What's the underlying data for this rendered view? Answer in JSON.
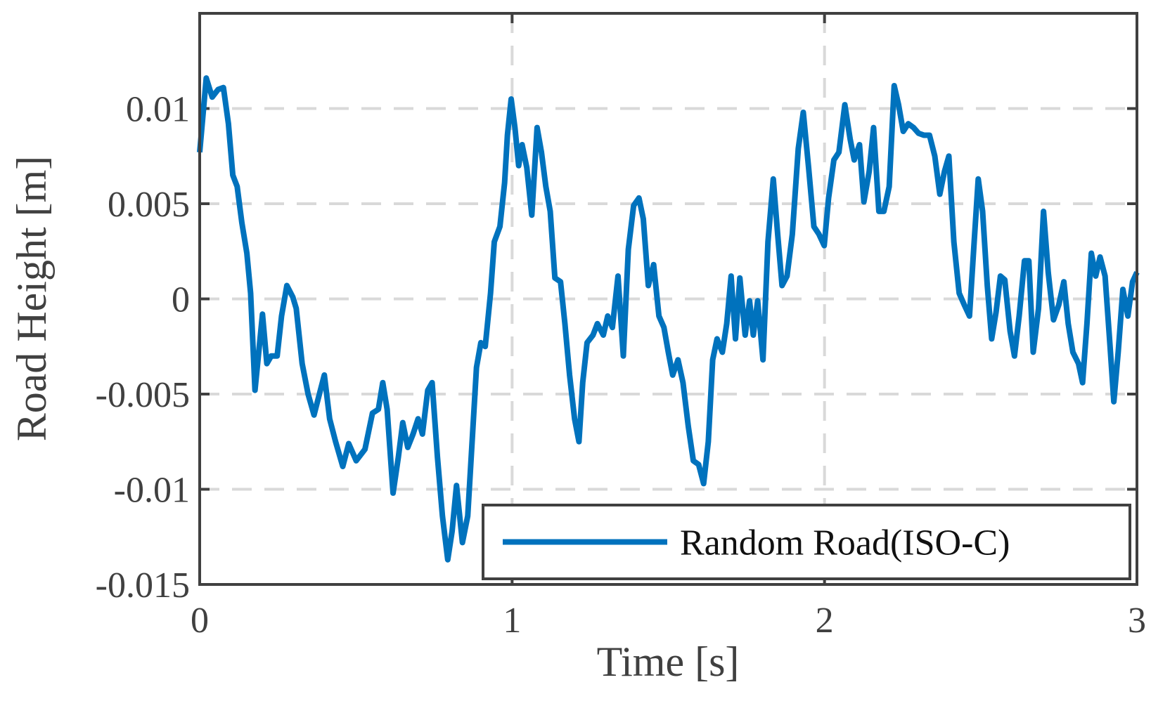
{
  "chart_data": {
    "type": "line",
    "xlabel": "Time [s]",
    "ylabel": "Road Height [m]",
    "x": [
      0,
      0.021,
      0.04,
      0.059,
      0.076,
      0.092,
      0.106,
      0.12,
      0.135,
      0.151,
      0.163,
      0.177,
      0.189,
      0.201,
      0.215,
      0.229,
      0.248,
      0.262,
      0.279,
      0.298,
      0.309,
      0.328,
      0.347,
      0.366,
      0.38,
      0.399,
      0.416,
      0.435,
      0.458,
      0.477,
      0.501,
      0.529,
      0.553,
      0.572,
      0.586,
      0.6,
      0.619,
      0.636,
      0.65,
      0.666,
      0.683,
      0.699,
      0.713,
      0.73,
      0.744,
      0.761,
      0.777,
      0.794,
      0.808,
      0.822,
      0.841,
      0.858,
      0.872,
      0.886,
      0.9,
      0.914,
      0.931,
      0.943,
      0.961,
      0.976,
      0.985,
      0.997,
      1.009,
      1.021,
      1.032,
      1.047,
      1.063,
      1.08,
      1.094,
      1.108,
      1.122,
      1.137,
      1.155,
      1.169,
      1.184,
      1.2,
      1.214,
      1.226,
      1.24,
      1.259,
      1.273,
      1.292,
      1.306,
      1.321,
      1.339,
      1.356,
      1.372,
      1.389,
      1.406,
      1.42,
      1.436,
      1.453,
      1.47,
      1.486,
      1.5,
      1.514,
      1.531,
      1.547,
      1.564,
      1.58,
      1.597,
      1.613,
      1.628,
      1.642,
      1.656,
      1.673,
      1.687,
      1.701,
      1.715,
      1.729,
      1.746,
      1.76,
      1.772,
      1.786,
      1.803,
      1.819,
      1.836,
      1.85,
      1.864,
      1.88,
      1.897,
      1.916,
      1.932,
      1.949,
      1.966,
      1.982,
      1.999,
      2.013,
      2.03,
      2.046,
      2.065,
      2.082,
      2.095,
      2.112,
      2.126,
      2.143,
      2.157,
      2.174,
      2.19,
      2.207,
      2.223,
      2.237,
      2.252,
      2.268,
      2.285,
      2.301,
      2.318,
      2.336,
      2.353,
      2.369,
      2.384,
      2.398,
      2.414,
      2.431,
      2.447,
      2.464,
      2.479,
      2.492,
      2.506,
      2.521,
      2.535,
      2.549,
      2.563,
      2.577,
      2.594,
      2.608,
      2.623,
      2.64,
      2.654,
      2.668,
      2.685,
      2.701,
      2.716,
      2.733,
      2.75,
      2.766,
      2.78,
      2.795,
      2.813,
      2.826,
      2.84,
      2.854,
      2.868,
      2.882,
      2.898,
      2.914,
      2.926,
      2.94,
      2.955,
      2.971,
      2.986,
      3.0
    ],
    "series": [
      {
        "name": "Random Road(ISO-C)",
        "color": "#0072BD",
        "values": [
          0.0077,
          0.0116,
          0.0106,
          0.011,
          0.0111,
          0.0092,
          0.0065,
          0.0059,
          0.004,
          0.0024,
          0.0003,
          -0.0048,
          -0.0028,
          -0.0008,
          -0.0034,
          -0.003,
          -0.003,
          -0.0009,
          0.0007,
          0.0001,
          -0.0005,
          -0.0034,
          -0.005,
          -0.0061,
          -0.0052,
          -0.004,
          -0.0063,
          -0.0075,
          -0.0088,
          -0.0076,
          -0.0085,
          -0.0079,
          -0.006,
          -0.0058,
          -0.0044,
          -0.0058,
          -0.0102,
          -0.0083,
          -0.0065,
          -0.0078,
          -0.0071,
          -0.0063,
          -0.0071,
          -0.0048,
          -0.0044,
          -0.0083,
          -0.0114,
          -0.0137,
          -0.0122,
          -0.0098,
          -0.0128,
          -0.0114,
          -0.0075,
          -0.0036,
          -0.0023,
          -0.0025,
          0.0003,
          0.003,
          0.0038,
          0.0061,
          0.0086,
          0.0105,
          0.009,
          0.007,
          0.0081,
          0.0069,
          0.0044,
          0.009,
          0.0077,
          0.0059,
          0.0046,
          0.0011,
          0.0009,
          -0.0013,
          -0.004,
          -0.0063,
          -0.0075,
          -0.0044,
          -0.0023,
          -0.0019,
          -0.0013,
          -0.0019,
          -0.0009,
          -0.0015,
          0.0012,
          -0.003,
          0.0026,
          0.0049,
          0.0053,
          0.0042,
          0.0007,
          0.0018,
          -0.0009,
          -0.0015,
          -0.0028,
          -0.004,
          -0.0032,
          -0.0044,
          -0.0067,
          -0.0085,
          -0.0087,
          -0.0097,
          -0.0075,
          -0.0032,
          -0.0021,
          -0.0028,
          -0.0013,
          0.0012,
          -0.0021,
          0.0011,
          -0.0019,
          -0.0001,
          -0.0019,
          -0.0001,
          -0.0032,
          0.003,
          0.0063,
          0.0034,
          0.0007,
          0.0012,
          0.0034,
          0.0079,
          0.0098,
          0.0069,
          0.0038,
          0.0034,
          0.0028,
          0.0053,
          0.0073,
          0.0077,
          0.0102,
          0.0084,
          0.0073,
          0.0081,
          0.0051,
          0.0067,
          0.009,
          0.0046,
          0.0046,
          0.0059,
          0.0112,
          0.0102,
          0.0088,
          0.0092,
          0.009,
          0.0087,
          0.0086,
          0.0086,
          0.0075,
          0.0055,
          0.0067,
          0.0075,
          0.003,
          0.0003,
          -0.0003,
          -0.0009,
          0.003,
          0.0063,
          0.0046,
          0.0007,
          -0.0021,
          -0.0007,
          0.0012,
          0.001,
          -0.0017,
          -0.003,
          -0.0009,
          0.002,
          0.002,
          -0.0028,
          -0.0005,
          0.0046,
          0.0014,
          -0.0011,
          -0.0003,
          0.0009,
          -0.0013,
          -0.0028,
          -0.0034,
          -0.0044,
          -0.0013,
          0.0024,
          0.0012,
          0.0022,
          0.0012,
          -0.0025,
          -0.0054,
          -0.0028,
          0.0005,
          -0.0009,
          0.0009,
          0.0014
        ]
      }
    ],
    "xlim": [
      0,
      3
    ],
    "xticks": [
      0,
      1,
      2,
      3
    ],
    "ylim": [
      -0.015,
      0.015
    ],
    "yticks": [
      -0.015,
      -0.01,
      -0.005,
      0,
      0.005,
      0.01
    ],
    "grid": true,
    "legend": "lower right"
  }
}
